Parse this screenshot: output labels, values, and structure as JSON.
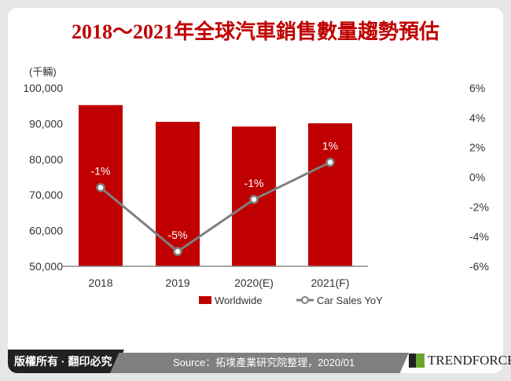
{
  "title": "2018～2021年全球汽車銷售數量趨勢預估",
  "footer": {
    "copyright": "版權所有 · 翻印必究",
    "source": "Source：拓墣產業研究院整理，2020/01",
    "logo": "TRENDFORCE"
  },
  "chart_data": {
    "type": "bar+line",
    "categories": [
      "2018",
      "2019",
      "2020(E)",
      "2021(F)"
    ],
    "y_left": {
      "unit_label": "(千輛)",
      "lim": [
        50000,
        100000
      ],
      "ticks": [
        "50,000",
        "60,000",
        "70,000",
        "80,000",
        "90,000",
        "100,000"
      ]
    },
    "y_right": {
      "lim": [
        -6,
        6
      ],
      "ticks": [
        "-6%",
        "-4%",
        "-2%",
        "0%",
        "2%",
        "4%",
        "6%"
      ]
    },
    "series": [
      {
        "name": "Worldwide",
        "type": "bar",
        "axis": "left",
        "color": "#c00000",
        "values": [
          95200,
          90500,
          89200,
          90100
        ]
      },
      {
        "name": "Car Sales YoY",
        "type": "line",
        "axis": "right",
        "color": "#7f7f7f",
        "values": [
          -0.7,
          -5.0,
          -1.5,
          1.0
        ],
        "labels": [
          "-1%",
          "-5%",
          "-1%",
          "1%"
        ]
      }
    ],
    "legend": "bottom",
    "grid": false
  }
}
